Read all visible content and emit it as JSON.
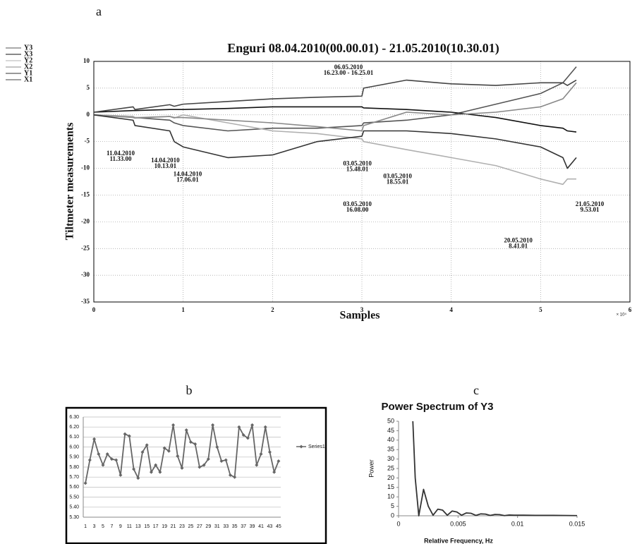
{
  "chart_data": [
    {
      "type": "line",
      "panel_label": "a",
      "title": "Enguri 08.04.2010(00.00.01) - 21.05.2010(10.30.01)",
      "x_label": "Samples",
      "y_label": "Tiltmeter measurements",
      "x_exponent_label": "× 10⁴",
      "x": [
        0,
        0.44,
        0.46,
        0.85,
        0.9,
        1.0,
        1.5,
        2.0,
        2.5,
        3.0,
        3.02,
        3.5,
        4.0,
        4.5,
        5.0,
        5.25,
        5.3,
        5.4
      ],
      "series": [
        {
          "name": "Y3",
          "color": "#555555",
          "values": [
            0,
            -0.3,
            -0.5,
            -1,
            -1.5,
            -2,
            -3,
            -2.5,
            -2.5,
            -2,
            -1.5,
            -1,
            0,
            2,
            4,
            6,
            7,
            9
          ]
        },
        {
          "name": "X3",
          "color": "#111111",
          "values": [
            0.5,
            0.8,
            0.8,
            1,
            1,
            1,
            1.2,
            1.5,
            1.5,
            1.5,
            1.3,
            1,
            0.5,
            -0.5,
            -2,
            -2.5,
            -3,
            -3.2
          ]
        },
        {
          "name": "Y2",
          "color": "#b0b0b0",
          "values": [
            0,
            -0.3,
            -0.5,
            -0.3,
            -0.6,
            0,
            -1.5,
            -3,
            -3.5,
            -4.5,
            -5,
            -6.5,
            -8,
            -9.5,
            -12,
            -13,
            -12,
            -12
          ]
        },
        {
          "name": "X2",
          "color": "#888888",
          "values": [
            0,
            -0.5,
            -0.6,
            -0.3,
            -0.5,
            -0.5,
            -1,
            -1.5,
            -2.2,
            -3,
            -2,
            0.5,
            0,
            0.5,
            1.5,
            3,
            4,
            6
          ]
        },
        {
          "name": "Y1",
          "color": "#333333",
          "values": [
            0,
            -1,
            -2,
            -3,
            -5,
            -6,
            -8,
            -7.5,
            -5,
            -4,
            -3,
            -3,
            -3.5,
            -4.5,
            -6,
            -8,
            -10,
            -8
          ]
        },
        {
          "name": "X1",
          "color": "#444444",
          "values": [
            0.5,
            1.5,
            1,
            1.9,
            1.6,
            2,
            2.5,
            3,
            3.3,
            3.5,
            5,
            6.5,
            5.8,
            5.5,
            6,
            6,
            5.5,
            6.5
          ]
        }
      ],
      "annotations": [
        [
          "11.04.2010",
          "11.33.00"
        ],
        [
          "14.04.2010",
          "10.13.01"
        ],
        [
          "14.04.2010",
          "17.06.01"
        ],
        [
          "06.05.2010",
          "16.23.00 - 16.25.01"
        ],
        [
          "03.05.2010",
          "15.48.01"
        ],
        [
          "03.05.2010",
          "18.55.01"
        ],
        [
          "03.05.2010",
          "16.08.00"
        ],
        [
          "20.05.2010",
          "8.41.01"
        ],
        [
          "21.05.2010",
          "9.53.01"
        ]
      ],
      "xlim": [
        0,
        6
      ],
      "xticks": [
        0,
        1,
        2,
        3,
        4,
        5,
        6
      ],
      "ylim": [
        -35,
        10
      ],
      "yticks": [
        10,
        5,
        0,
        -5,
        -10,
        -15,
        -20,
        -25,
        -30,
        -35
      ],
      "grid": true,
      "legend": "outside-left"
    },
    {
      "type": "line",
      "panel_label": "b",
      "categories": [
        "1",
        null,
        "3",
        null,
        "5",
        null,
        "7",
        null,
        "9",
        null,
        "11",
        null,
        "13",
        null,
        "15",
        null,
        "17",
        null,
        "19",
        null,
        "21",
        null,
        "23",
        null,
        "25",
        null,
        "27",
        null,
        "29",
        null,
        "31",
        null,
        "33",
        null,
        "35",
        null,
        "37",
        null,
        "39",
        null,
        "41",
        null,
        "43",
        null,
        "45"
      ],
      "series": [
        {
          "name": "Series1",
          "color": "#666666",
          "values": [
            5.64,
            5.87,
            6.08,
            5.93,
            5.82,
            5.93,
            5.88,
            5.87,
            5.72,
            6.13,
            6.11,
            5.78,
            5.69,
            5.95,
            6.02,
            5.75,
            5.82,
            5.75,
            5.99,
            5.96,
            6.22,
            5.91,
            5.79,
            6.17,
            6.05,
            6.03,
            5.8,
            5.82,
            5.88,
            6.22,
            6.0,
            5.86,
            5.87,
            5.72,
            5.7,
            6.2,
            6.12,
            6.09,
            6.22,
            5.82,
            5.93,
            6.2,
            5.95,
            5.75,
            5.86
          ]
        }
      ],
      "ylim": [
        5.3,
        6.3
      ],
      "yticks": [
        {
          "value": 5.3,
          "label": "5.30"
        },
        {
          "value": 5.4,
          "label": "5.40"
        },
        {
          "value": 5.5,
          "label": "5.50"
        },
        {
          "value": 5.6,
          "label": "5.60"
        },
        {
          "value": 5.7,
          "label": "5.70"
        },
        {
          "value": 5.8,
          "label": "5.80"
        },
        {
          "value": 5.9,
          "label": "5.90"
        },
        {
          "value": 6.0,
          "label": "6.00"
        },
        {
          "value": 6.1,
          "label": "6.10"
        },
        {
          "value": 6.2,
          "label": "6.20"
        },
        {
          "value": 6.3,
          "label": "6.30"
        }
      ],
      "grid": true,
      "legend": "right"
    },
    {
      "type": "line",
      "panel_label": "c",
      "title": "Power Spectrum of Y3",
      "x_label": "Relative Frequency, Hz",
      "y_label": "Power",
      "x": [
        0.0012,
        0.0014,
        0.0017,
        0.0021,
        0.0025,
        0.0029,
        0.0033,
        0.0037,
        0.0041,
        0.0045,
        0.0049,
        0.0053,
        0.0057,
        0.0061,
        0.0065,
        0.0069,
        0.0073,
        0.0077,
        0.0081,
        0.0085,
        0.0089,
        0.0093,
        0.0097,
        0.0105,
        0.0115,
        0.013,
        0.015
      ],
      "series": [
        {
          "name": "Y3",
          "color": "#333333",
          "values": [
            50,
            20,
            0,
            14,
            5,
            0.3,
            3.5,
            3,
            0.3,
            2.5,
            2,
            0.3,
            1.5,
            1.3,
            0.2,
            1.0,
            0.9,
            0.2,
            0.7,
            0.6,
            0.1,
            0.4,
            0.3,
            0.3,
            0.2,
            0.2,
            0.1
          ]
        }
      ],
      "xlim": [
        0,
        0.015
      ],
      "xticks": [
        0,
        0.005,
        0.01,
        0.015
      ],
      "ylim": [
        0,
        50
      ],
      "yticks": [
        0,
        5,
        10,
        15,
        20,
        25,
        30,
        35,
        40,
        45,
        50
      ],
      "grid": false
    }
  ]
}
